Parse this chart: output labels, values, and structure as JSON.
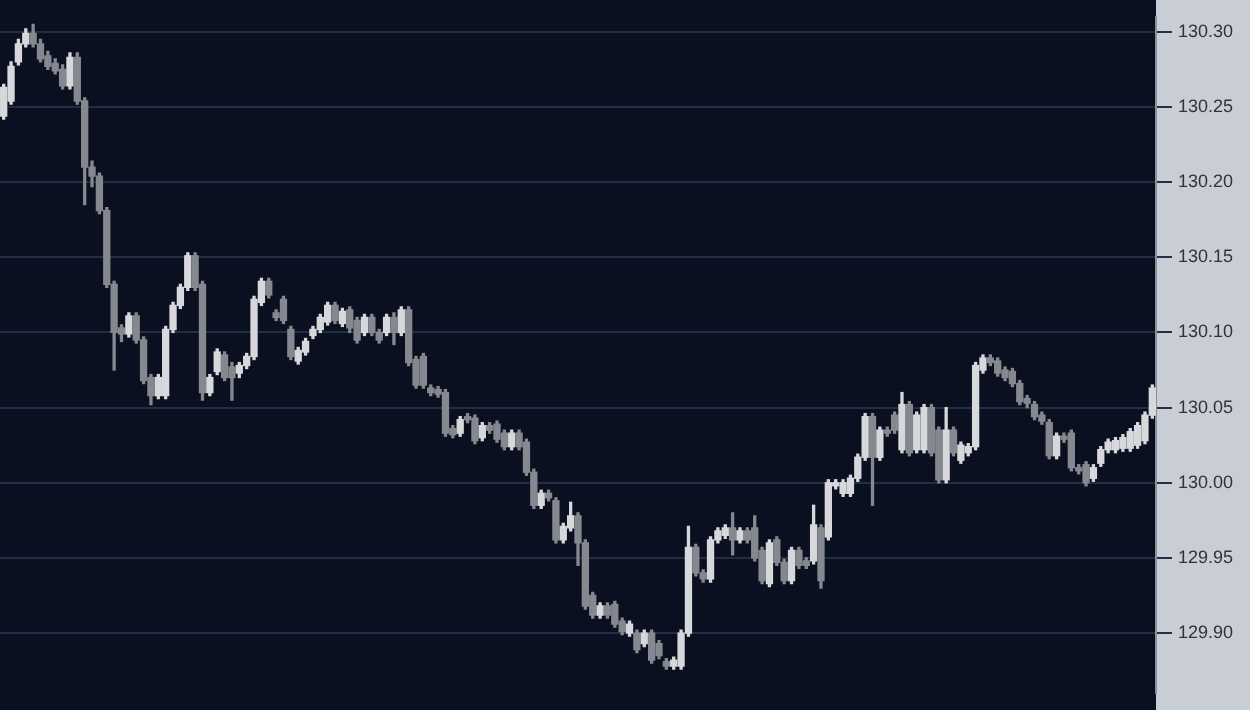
{
  "chart_data": {
    "type": "candlestick",
    "categories": [
      null,
      null,
      null,
      null,
      null,
      null,
      null,
      null,
      null,
      null,
      null,
      null,
      null,
      null,
      null,
      null,
      null,
      null,
      null,
      null,
      null,
      null,
      null,
      null,
      null,
      null,
      null,
      null,
      null,
      null,
      null,
      null,
      null,
      null,
      null,
      null,
      null,
      null,
      null,
      null,
      null,
      null,
      null,
      null,
      null,
      null,
      null,
      null,
      null,
      null,
      null,
      null,
      null,
      null,
      null,
      null,
      null,
      null,
      null,
      null,
      null,
      null,
      null,
      null,
      null,
      null,
      null,
      null,
      null,
      null,
      null,
      null,
      null,
      null,
      null,
      null,
      null,
      null,
      null,
      null,
      null,
      null,
      null,
      null,
      null,
      null,
      null,
      null,
      null,
      null,
      null,
      null,
      null,
      null,
      null,
      null,
      null,
      null,
      null,
      null,
      null,
      null,
      null,
      null,
      null,
      null,
      null,
      null,
      null,
      null,
      null,
      null,
      null,
      null,
      null,
      null,
      null,
      null,
      null,
      null,
      null,
      null,
      null,
      null,
      null,
      null,
      null,
      null,
      null,
      null,
      null,
      null,
      null,
      null,
      null,
      null,
      null,
      null,
      null,
      null,
      null,
      null,
      null,
      null,
      null,
      null,
      null,
      null,
      null,
      null,
      null,
      null,
      null,
      null,
      null,
      null,
      null
    ],
    "ohlc": [
      [
        130.244,
        130.265,
        130.242,
        130.263
      ],
      [
        130.254,
        130.28,
        130.252,
        130.277
      ],
      [
        130.28,
        130.295,
        130.278,
        130.292
      ],
      [
        130.292,
        130.302,
        130.29,
        130.299
      ],
      [
        130.299,
        130.305,
        130.29,
        130.292
      ],
      [
        130.292,
        130.295,
        130.28,
        130.282
      ],
      [
        130.284,
        130.287,
        130.275,
        130.277
      ],
      [
        130.279,
        130.282,
        130.272,
        130.274
      ],
      [
        130.275,
        130.278,
        130.262,
        130.264
      ],
      [
        130.264,
        130.286,
        130.262,
        130.283
      ],
      [
        130.283,
        130.286,
        130.252,
        130.254
      ],
      [
        130.254,
        130.256,
        130.185,
        130.21
      ],
      [
        130.21,
        130.214,
        130.197,
        130.204
      ],
      [
        130.204,
        130.206,
        130.179,
        130.181
      ],
      [
        130.181,
        130.183,
        130.13,
        130.132
      ],
      [
        130.132,
        130.134,
        130.075,
        130.1
      ],
      [
        130.103,
        130.105,
        130.094,
        130.099
      ],
      [
        130.099,
        130.113,
        130.097,
        130.111
      ],
      [
        130.111,
        130.113,
        130.093,
        130.095
      ],
      [
        130.095,
        130.097,
        130.066,
        130.068
      ],
      [
        130.07,
        130.072,
        130.052,
        130.058
      ],
      [
        130.058,
        130.072,
        130.056,
        130.07
      ],
      [
        130.058,
        130.104,
        130.056,
        130.102
      ],
      [
        130.102,
        130.12,
        130.1,
        130.118
      ],
      [
        130.118,
        130.132,
        130.116,
        130.13
      ],
      [
        130.13,
        130.153,
        130.128,
        130.151
      ],
      [
        130.151,
        130.153,
        130.128,
        130.13
      ],
      [
        130.132,
        130.134,
        130.055,
        130.06
      ],
      [
        130.06,
        130.072,
        130.058,
        130.07
      ],
      [
        130.074,
        130.089,
        130.072,
        130.087
      ],
      [
        130.085,
        130.087,
        130.068,
        130.07
      ],
      [
        130.077,
        130.08,
        130.055,
        130.07
      ],
      [
        130.073,
        130.08,
        130.07,
        130.078
      ],
      [
        130.078,
        130.086,
        130.076,
        130.084
      ],
      [
        130.084,
        130.124,
        130.082,
        130.122
      ],
      [
        130.12,
        130.136,
        130.118,
        130.134
      ],
      [
        130.134,
        130.136,
        130.123,
        130.125
      ],
      [
        130.113,
        130.115,
        130.108,
        130.11
      ],
      [
        130.122,
        130.124,
        130.106,
        130.108
      ],
      [
        130.102,
        130.104,
        130.082,
        130.084
      ],
      [
        130.081,
        130.09,
        130.079,
        130.088
      ],
      [
        130.087,
        130.096,
        130.085,
        130.094
      ],
      [
        130.098,
        130.104,
        130.096,
        130.102
      ],
      [
        130.102,
        130.112,
        130.1,
        130.11
      ],
      [
        130.107,
        130.12,
        130.105,
        130.118
      ],
      [
        130.118,
        130.12,
        130.106,
        130.108
      ],
      [
        130.106,
        130.116,
        130.104,
        130.114
      ],
      [
        130.115,
        130.117,
        130.1,
        130.103
      ],
      [
        130.108,
        130.11,
        130.093,
        130.095
      ],
      [
        130.1,
        130.112,
        130.098,
        130.11
      ],
      [
        130.11,
        130.112,
        130.098,
        130.1
      ],
      [
        130.1,
        130.102,
        130.093,
        130.095
      ],
      [
        130.1,
        130.112,
        130.098,
        130.11
      ],
      [
        130.11,
        130.113,
        130.092,
        130.1
      ],
      [
        130.1,
        130.117,
        130.098,
        130.115
      ],
      [
        130.115,
        130.117,
        130.078,
        130.08
      ],
      [
        130.082,
        130.084,
        130.063,
        130.065
      ],
      [
        130.084,
        130.086,
        130.063,
        130.065
      ],
      [
        130.063,
        130.065,
        130.058,
        130.06
      ],
      [
        130.062,
        130.064,
        130.057,
        130.059
      ],
      [
        130.06,
        130.062,
        130.031,
        130.033
      ],
      [
        130.036,
        130.038,
        130.03,
        130.032
      ],
      [
        130.033,
        130.044,
        130.031,
        130.042
      ],
      [
        130.044,
        130.046,
        130.04,
        130.042
      ],
      [
        130.043,
        130.045,
        130.026,
        130.028
      ],
      [
        130.03,
        130.04,
        130.028,
        130.038
      ],
      [
        130.038,
        130.04,
        130.033,
        130.035
      ],
      [
        130.039,
        130.041,
        130.027,
        130.029
      ],
      [
        130.033,
        130.035,
        130.022,
        130.024
      ],
      [
        130.024,
        130.035,
        130.022,
        130.033
      ],
      [
        130.033,
        130.035,
        130.022,
        130.024
      ],
      [
        130.027,
        130.029,
        130.005,
        130.007
      ],
      [
        130.007,
        130.009,
        129.983,
        129.985
      ],
      [
        129.985,
        129.995,
        129.983,
        129.993
      ],
      [
        129.993,
        129.995,
        129.988,
        129.99
      ],
      [
        129.988,
        129.99,
        129.96,
        129.962
      ],
      [
        129.962,
        129.973,
        129.96,
        129.971
      ],
      [
        129.97,
        129.987,
        129.968,
        129.978
      ],
      [
        129.978,
        129.98,
        129.945,
        129.96
      ],
      [
        129.96,
        129.962,
        129.916,
        129.918
      ],
      [
        129.925,
        129.927,
        129.91,
        129.912
      ],
      [
        129.912,
        129.92,
        129.91,
        129.918
      ],
      [
        129.918,
        129.92,
        129.91,
        129.912
      ],
      [
        129.919,
        129.921,
        129.904,
        129.906
      ],
      [
        129.908,
        129.91,
        129.899,
        129.901
      ],
      [
        129.9,
        129.908,
        129.898,
        129.906
      ],
      [
        129.9,
        129.902,
        129.887,
        129.889
      ],
      [
        129.893,
        129.902,
        129.891,
        129.9
      ],
      [
        129.9,
        129.902,
        129.88,
        129.882
      ],
      [
        129.893,
        129.895,
        129.883,
        129.885
      ],
      [
        129.881,
        129.883,
        129.876,
        129.878
      ],
      [
        129.878,
        129.884,
        129.876,
        129.882
      ],
      [
        129.878,
        129.902,
        129.876,
        129.9
      ],
      [
        129.9,
        129.971,
        129.898,
        129.957
      ],
      [
        129.957,
        129.959,
        129.938,
        129.94
      ],
      [
        129.94,
        129.942,
        129.934,
        129.936
      ],
      [
        129.936,
        129.964,
        129.934,
        129.962
      ],
      [
        129.962,
        129.97,
        129.96,
        129.968
      ],
      [
        129.965,
        129.972,
        129.963,
        129.97
      ],
      [
        129.97,
        129.98,
        129.952,
        129.962
      ],
      [
        129.962,
        129.97,
        129.96,
        129.968
      ],
      [
        129.968,
        129.97,
        129.96,
        129.962
      ],
      [
        129.97,
        129.978,
        129.948,
        129.95
      ],
      [
        129.955,
        129.957,
        129.933,
        129.935
      ],
      [
        129.933,
        129.962,
        129.931,
        129.96
      ],
      [
        129.962,
        129.964,
        129.945,
        129.947
      ],
      [
        129.947,
        129.949,
        129.933,
        129.935
      ],
      [
        129.935,
        129.957,
        129.933,
        129.955
      ],
      [
        129.955,
        129.957,
        129.943,
        129.945
      ],
      [
        129.948,
        129.95,
        129.943,
        129.945
      ],
      [
        129.948,
        129.985,
        129.946,
        129.972
      ],
      [
        129.97,
        129.972,
        129.93,
        129.935
      ],
      [
        129.964,
        130.002,
        129.962,
        130.0
      ],
      [
        129.998,
        130.002,
        129.996,
        130.0
      ],
      [
        129.993,
        130.002,
        129.991,
        130.0
      ],
      [
        129.993,
        130.005,
        129.991,
        130.003
      ],
      [
        130.003,
        130.019,
        130.001,
        130.017
      ],
      [
        130.017,
        130.046,
        130.015,
        130.044
      ],
      [
        130.044,
        130.046,
        129.985,
        130.017
      ],
      [
        130.017,
        130.037,
        130.015,
        130.035
      ],
      [
        130.035,
        130.037,
        130.031,
        130.033
      ],
      [
        130.045,
        130.047,
        130.033,
        130.035
      ],
      [
        130.022,
        130.06,
        130.02,
        130.052
      ],
      [
        130.052,
        130.054,
        130.018,
        130.02
      ],
      [
        130.022,
        130.047,
        130.02,
        130.045
      ],
      [
        130.022,
        130.052,
        130.02,
        130.05
      ],
      [
        130.05,
        130.052,
        130.018,
        130.02
      ],
      [
        130.035,
        130.037,
        130.0,
        130.002
      ],
      [
        130.002,
        130.05,
        130.0,
        130.035
      ],
      [
        130.035,
        130.037,
        130.018,
        130.02
      ],
      [
        130.015,
        130.027,
        130.013,
        130.025
      ],
      [
        130.02,
        130.026,
        130.018,
        130.024
      ],
      [
        130.024,
        130.08,
        130.022,
        130.078
      ],
      [
        130.075,
        130.085,
        130.073,
        130.083
      ],
      [
        130.083,
        130.085,
        130.078,
        130.08
      ],
      [
        130.081,
        130.083,
        130.071,
        130.073
      ],
      [
        130.075,
        130.077,
        130.068,
        130.07
      ],
      [
        130.074,
        130.076,
        130.064,
        130.066
      ],
      [
        130.066,
        130.068,
        130.052,
        130.054
      ],
      [
        130.056,
        130.058,
        130.05,
        130.053
      ],
      [
        130.052,
        130.054,
        130.042,
        130.044
      ],
      [
        130.045,
        130.047,
        130.039,
        130.041
      ],
      [
        130.04,
        130.042,
        130.016,
        130.018
      ],
      [
        130.018,
        130.033,
        130.016,
        130.031
      ],
      [
        130.031,
        130.033,
        130.027,
        130.029
      ],
      [
        130.033,
        130.035,
        130.008,
        130.01
      ],
      [
        130.01,
        130.012,
        130.006,
        130.008
      ],
      [
        130.012,
        130.014,
        129.998,
        130.0
      ],
      [
        130.003,
        130.012,
        130.001,
        130.01
      ],
      [
        130.013,
        130.024,
        130.011,
        130.022
      ],
      [
        130.022,
        130.029,
        130.02,
        130.027
      ],
      [
        130.022,
        130.03,
        130.02,
        130.028
      ],
      [
        130.023,
        130.032,
        130.021,
        130.03
      ],
      [
        130.023,
        130.036,
        130.021,
        130.034
      ],
      [
        130.025,
        130.04,
        130.023,
        130.038
      ],
      [
        130.028,
        130.047,
        130.026,
        130.045
      ],
      [
        130.045,
        130.065,
        130.043,
        130.063
      ]
    ],
    "colors": [
      "#d6d8dc",
      "#d6d8dc",
      "#d6d8dc",
      "#d6d8dc",
      "#85888e",
      "#85888e",
      "#85888e",
      "#85888e",
      "#85888e",
      "#d6d8dc",
      "#85888e",
      "#85888e",
      "#85888e",
      "#85888e",
      "#85888e",
      "#85888e",
      "#85888e",
      "#d6d8dc",
      "#85888e",
      "#85888e",
      "#85888e",
      "#d6d8dc",
      "#d6d8dc",
      "#d6d8dc",
      "#d6d8dc",
      "#d6d8dc",
      "#85888e",
      "#85888e",
      "#d6d8dc",
      "#d6d8dc",
      "#85888e",
      "#85888e",
      "#d6d8dc",
      "#d6d8dc",
      "#d6d8dc",
      "#d6d8dc",
      "#85888e",
      "#85888e",
      "#85888e",
      "#85888e",
      "#d6d8dc",
      "#d6d8dc",
      "#d6d8dc",
      "#d6d8dc",
      "#d6d8dc",
      "#85888e",
      "#d6d8dc",
      "#85888e",
      "#85888e",
      "#d6d8dc",
      "#85888e",
      "#85888e",
      "#d6d8dc",
      "#85888e",
      "#d6d8dc",
      "#85888e",
      "#85888e",
      "#85888e",
      "#85888e",
      "#85888e",
      "#85888e",
      "#85888e",
      "#d6d8dc",
      "#85888e",
      "#85888e",
      "#d6d8dc",
      "#85888e",
      "#85888e",
      "#85888e",
      "#d6d8dc",
      "#85888e",
      "#85888e",
      "#85888e",
      "#d6d8dc",
      "#85888e",
      "#85888e",
      "#d6d8dc",
      "#d6d8dc",
      "#85888e",
      "#85888e",
      "#85888e",
      "#d6d8dc",
      "#85888e",
      "#85888e",
      "#85888e",
      "#d6d8dc",
      "#85888e",
      "#d6d8dc",
      "#85888e",
      "#85888e",
      "#85888e",
      "#d6d8dc",
      "#d6d8dc",
      "#d6d8dc",
      "#85888e",
      "#85888e",
      "#d6d8dc",
      "#d6d8dc",
      "#d6d8dc",
      "#85888e",
      "#d6d8dc",
      "#85888e",
      "#85888e",
      "#85888e",
      "#d6d8dc",
      "#85888e",
      "#85888e",
      "#d6d8dc",
      "#85888e",
      "#85888e",
      "#d6d8dc",
      "#85888e",
      "#d6d8dc",
      "#d6d8dc",
      "#d6d8dc",
      "#d6d8dc",
      "#d6d8dc",
      "#d6d8dc",
      "#85888e",
      "#d6d8dc",
      "#85888e",
      "#85888e",
      "#d6d8dc",
      "#85888e",
      "#d6d8dc",
      "#d6d8dc",
      "#85888e",
      "#85888e",
      "#d6d8dc",
      "#85888e",
      "#d6d8dc",
      "#d6d8dc",
      "#d6d8dc",
      "#d6d8dc",
      "#85888e",
      "#85888e",
      "#85888e",
      "#85888e",
      "#85888e",
      "#85888e",
      "#85888e",
      "#85888e",
      "#85888e",
      "#d6d8dc",
      "#85888e",
      "#85888e",
      "#85888e",
      "#85888e",
      "#d6d8dc",
      "#d6d8dc",
      "#d6d8dc",
      "#d6d8dc",
      "#d6d8dc",
      "#d6d8dc",
      "#d6d8dc",
      "#d6d8dc",
      "#d6d8dc"
    ],
    "ylim": [
      129.86,
      130.31
    ],
    "yticks": [
      {
        "value": 129.9,
        "label": "129.90"
      },
      {
        "value": 129.95,
        "label": "129.95"
      },
      {
        "value": 130.0,
        "label": "130.00"
      },
      {
        "value": 130.05,
        "label": "130.05"
      },
      {
        "value": 130.1,
        "label": "130.10"
      },
      {
        "value": 130.15,
        "label": "130.15"
      },
      {
        "value": 130.2,
        "label": "130.20"
      },
      {
        "value": 130.25,
        "label": "130.25"
      },
      {
        "value": 130.3,
        "label": "130.30"
      }
    ],
    "grid": "y",
    "tick_labels": "y",
    "legend": false
  }
}
